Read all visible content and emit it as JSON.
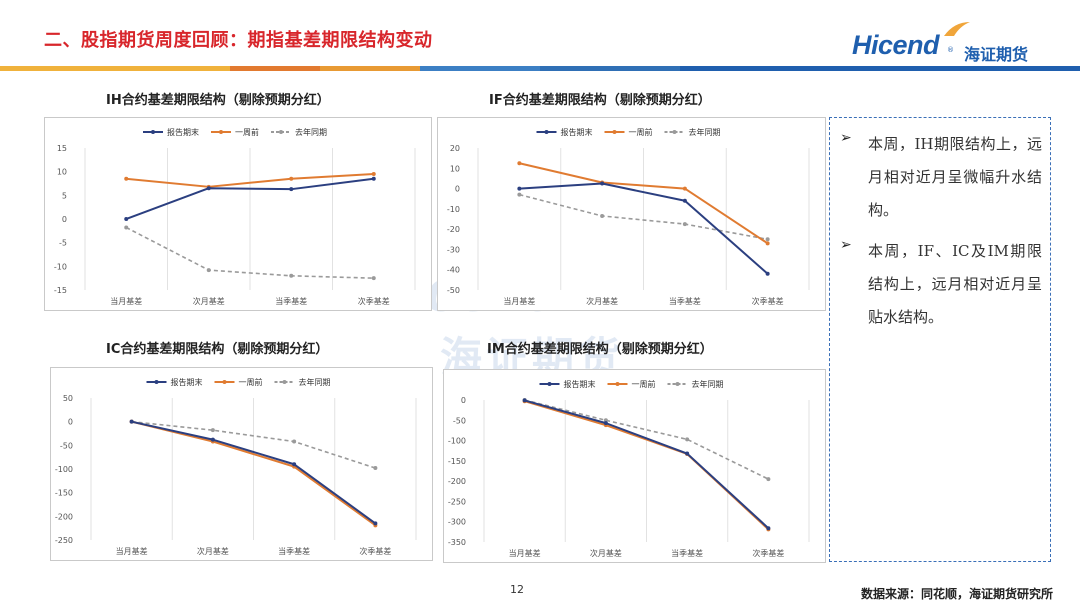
{
  "header": {
    "title": "二、股指期货周度回顾：期指基差期限结构变动",
    "logo_en": "Hicend",
    "logo_reg": "®",
    "logo_cn": "海证期货"
  },
  "stripe_colors": [
    "#f0b23c",
    "#e27a2f",
    "#e89a34",
    "#3c7fc4",
    "#2f6fb5",
    "#1f5fae"
  ],
  "watermark": {
    "en": "Hicend",
    "cn": "海证期货"
  },
  "legend_labels": [
    "报告期末",
    "一周前",
    "去年同期"
  ],
  "series_colors": {
    "报告期末": "#2b3f80",
    "一周前": "#e07b31",
    "去年同期": "#9a9a9a"
  },
  "chart_data": [
    {
      "type": "line",
      "title": "IH合约基差期限结构（剔除预期分红）",
      "categories": [
        "当月基差",
        "次月基差",
        "当季基差",
        "次季基差"
      ],
      "ylim": [
        -15,
        15
      ],
      "yticks": [
        15,
        10,
        5,
        0,
        -5,
        -10,
        -15
      ],
      "grid": "vertical",
      "legend": "top",
      "series": [
        {
          "name": "报告期末",
          "values": [
            0,
            6.5,
            6.3,
            8.5
          ]
        },
        {
          "name": "一周前",
          "values": [
            8.5,
            6.8,
            8.5,
            9.5
          ]
        },
        {
          "name": "去年同期",
          "values": [
            -1.8,
            -10.8,
            -12.0,
            -12.5
          ]
        }
      ]
    },
    {
      "type": "line",
      "title": "IF合约基差期限结构（剔除预期分红）",
      "categories": [
        "当月基差",
        "次月基差",
        "当季基差",
        "次季基差"
      ],
      "ylim": [
        -50,
        20
      ],
      "yticks": [
        20,
        10,
        0,
        -10,
        -20,
        -30,
        -40,
        -50
      ],
      "grid": "vertical",
      "legend": "top",
      "series": [
        {
          "name": "报告期末",
          "values": [
            0,
            2.5,
            -6,
            -42
          ]
        },
        {
          "name": "一周前",
          "values": [
            12.5,
            3,
            0,
            -27
          ]
        },
        {
          "name": "去年同期",
          "values": [
            -3,
            -13.5,
            -17.5,
            -25
          ]
        }
      ]
    },
    {
      "type": "line",
      "title": "IC合约基差期限结构（剔除预期分红）",
      "categories": [
        "当月基差",
        "次月基差",
        "当季基差",
        "次季基差"
      ],
      "ylim": [
        -250,
        50
      ],
      "yticks": [
        50,
        0,
        -50,
        -100,
        -150,
        -200,
        -250
      ],
      "grid": "vertical",
      "legend": "top",
      "series": [
        {
          "name": "报告期末",
          "values": [
            0,
            -38,
            -90,
            -215
          ]
        },
        {
          "name": "一周前",
          "values": [
            0,
            -42,
            -95,
            -219
          ]
        },
        {
          "name": "去年同期",
          "values": [
            0,
            -18,
            -42,
            -98
          ]
        }
      ]
    },
    {
      "type": "line",
      "title": "IM合约基差期限结构（剔除预期分红）",
      "categories": [
        "当月基差",
        "次月基差",
        "当季基差",
        "次季基差"
      ],
      "ylim": [
        -350,
        0
      ],
      "yticks": [
        0,
        -50,
        -100,
        -150,
        -200,
        -250,
        -300,
        -350
      ],
      "grid": "vertical",
      "legend": "top",
      "series": [
        {
          "name": "报告期末",
          "values": [
            -1,
            -57,
            -132,
            -316
          ]
        },
        {
          "name": "一周前",
          "values": [
            -3,
            -62,
            -133,
            -319
          ]
        },
        {
          "name": "去年同期",
          "values": [
            0,
            -50,
            -97,
            -195
          ]
        }
      ]
    }
  ],
  "notes": [
    "本周，IH期限结构上，远月相对近月呈微幅升水结构。",
    "本周，IF、IC及IM期限结构上，远月相对近月呈贴水结构。"
  ],
  "bullet_symbol": "➢",
  "footer": {
    "page_number": "12",
    "source": "数据来源：同花顺，海证期货研究所"
  }
}
